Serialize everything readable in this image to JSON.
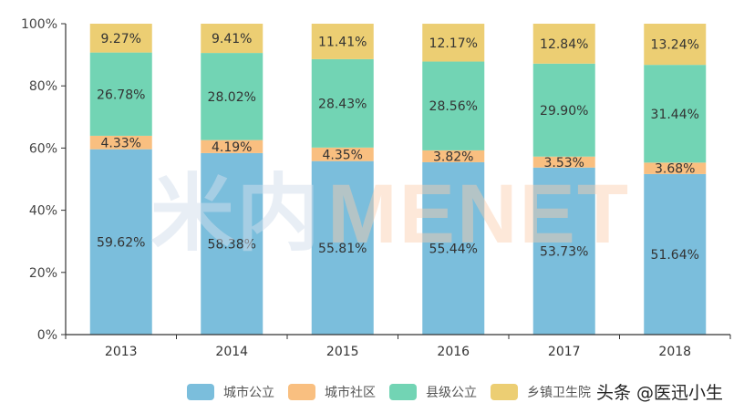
{
  "chart_data": {
    "type": "bar",
    "stacked": true,
    "categories": [
      "2013",
      "2014",
      "2015",
      "2016",
      "2017",
      "2018"
    ],
    "series": [
      {
        "name": "城市公立",
        "color": "#7bbedc",
        "values": [
          59.62,
          58.38,
          55.81,
          55.44,
          53.73,
          51.64
        ]
      },
      {
        "name": "城市社区",
        "color": "#f9bf80",
        "values": [
          4.33,
          4.19,
          4.35,
          3.82,
          3.53,
          3.68
        ]
      },
      {
        "name": "县级公立",
        "color": "#72d4b4",
        "values": [
          26.78,
          28.02,
          28.43,
          28.56,
          29.9,
          31.44
        ]
      },
      {
        "name": "乡镇卫生院",
        "color": "#ecce73",
        "values": [
          9.27,
          9.41,
          11.41,
          12.17,
          12.84,
          13.24
        ]
      }
    ],
    "yticks": [
      "0%",
      "20%",
      "40%",
      "60%",
      "80%",
      "100%"
    ],
    "ylim": [
      0,
      100
    ],
    "grid": false,
    "legend": "bottom"
  },
  "watermark": {
    "logo_cn": "米内",
    "logo_en": "MENET",
    "credit": "头条 @医迅小生"
  }
}
